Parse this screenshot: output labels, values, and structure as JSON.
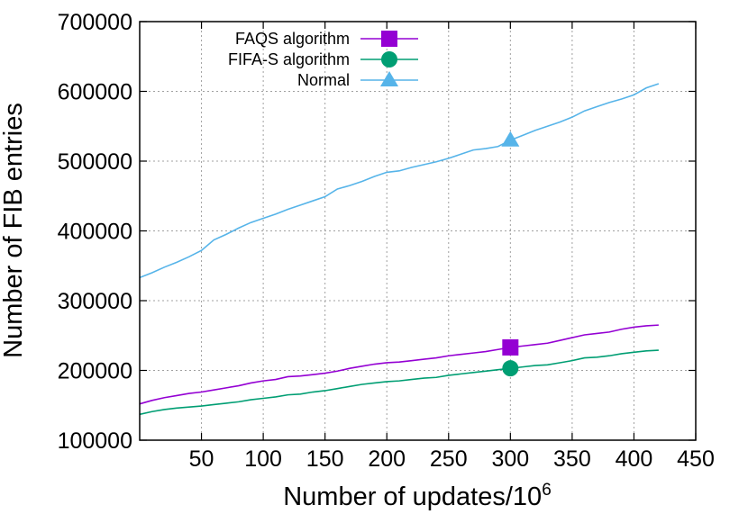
{
  "chart_data": {
    "type": "line",
    "xlabel": "Number of updates/10",
    "xlabel_superscript": "6",
    "ylabel": "Number of FIB entries",
    "xlim": [
      0,
      450
    ],
    "ylim": [
      100000,
      700000
    ],
    "x_ticks": [
      "50",
      "100",
      "150",
      "200",
      "250",
      "300",
      "350",
      "400",
      "450"
    ],
    "y_ticks": [
      "100000",
      "200000",
      "300000",
      "400000",
      "500000",
      "600000",
      "700000"
    ],
    "grid": true,
    "legend_position": "top-left",
    "series": [
      {
        "name": "FAQS algorithm",
        "color": "#9400d3",
        "marker": "square",
        "marker_at_x": 300,
        "points": [
          [
            0,
            152000
          ],
          [
            10,
            157000
          ],
          [
            20,
            161000
          ],
          [
            30,
            164000
          ],
          [
            40,
            167000
          ],
          [
            50,
            169000
          ],
          [
            60,
            172000
          ],
          [
            70,
            175000
          ],
          [
            80,
            178000
          ],
          [
            90,
            182000
          ],
          [
            100,
            185000
          ],
          [
            110,
            187000
          ],
          [
            120,
            191000
          ],
          [
            130,
            192000
          ],
          [
            140,
            194000
          ],
          [
            150,
            196000
          ],
          [
            160,
            199000
          ],
          [
            170,
            203000
          ],
          [
            180,
            206000
          ],
          [
            190,
            209000
          ],
          [
            200,
            211000
          ],
          [
            210,
            212000
          ],
          [
            220,
            214000
          ],
          [
            230,
            216000
          ],
          [
            240,
            218000
          ],
          [
            250,
            221000
          ],
          [
            260,
            223000
          ],
          [
            270,
            225000
          ],
          [
            280,
            227000
          ],
          [
            290,
            230000
          ],
          [
            300,
            233000
          ],
          [
            310,
            235000
          ],
          [
            320,
            237000
          ],
          [
            330,
            239000
          ],
          [
            340,
            243000
          ],
          [
            350,
            247000
          ],
          [
            360,
            251000
          ],
          [
            370,
            253000
          ],
          [
            380,
            255000
          ],
          [
            390,
            259000
          ],
          [
            400,
            262000
          ],
          [
            410,
            264000
          ],
          [
            420,
            265000
          ]
        ]
      },
      {
        "name": "FIFA-S algorithm",
        "color": "#009e73",
        "marker": "circle",
        "marker_at_x": 300,
        "points": [
          [
            0,
            137000
          ],
          [
            10,
            141000
          ],
          [
            20,
            144000
          ],
          [
            30,
            146000
          ],
          [
            40,
            147500
          ],
          [
            50,
            149000
          ],
          [
            60,
            151000
          ],
          [
            70,
            153000
          ],
          [
            80,
            155000
          ],
          [
            90,
            158000
          ],
          [
            100,
            160000
          ],
          [
            110,
            162000
          ],
          [
            120,
            165000
          ],
          [
            130,
            166000
          ],
          [
            140,
            169000
          ],
          [
            150,
            171000
          ],
          [
            160,
            174000
          ],
          [
            170,
            177000
          ],
          [
            180,
            180000
          ],
          [
            190,
            182000
          ],
          [
            200,
            184000
          ],
          [
            210,
            185000
          ],
          [
            220,
            187000
          ],
          [
            230,
            189000
          ],
          [
            240,
            190000
          ],
          [
            250,
            193000
          ],
          [
            260,
            195000
          ],
          [
            270,
            197000
          ],
          [
            280,
            199000
          ],
          [
            290,
            201000
          ],
          [
            300,
            203000
          ],
          [
            310,
            205000
          ],
          [
            320,
            207000
          ],
          [
            330,
            208000
          ],
          [
            340,
            211000
          ],
          [
            350,
            214000
          ],
          [
            360,
            218000
          ],
          [
            370,
            219000
          ],
          [
            380,
            221000
          ],
          [
            390,
            224000
          ],
          [
            400,
            226000
          ],
          [
            410,
            228000
          ],
          [
            420,
            229000
          ]
        ]
      },
      {
        "name": "Normal",
        "color": "#56b4e9",
        "marker": "triangle",
        "marker_at_x": 300,
        "points": [
          [
            0,
            333000
          ],
          [
            10,
            340000
          ],
          [
            20,
            348000
          ],
          [
            30,
            355000
          ],
          [
            40,
            363000
          ],
          [
            50,
            372000
          ],
          [
            60,
            387000
          ],
          [
            70,
            395000
          ],
          [
            80,
            404000
          ],
          [
            90,
            412000
          ],
          [
            100,
            418000
          ],
          [
            110,
            424000
          ],
          [
            120,
            431000
          ],
          [
            130,
            437000
          ],
          [
            140,
            443000
          ],
          [
            150,
            449000
          ],
          [
            160,
            460000
          ],
          [
            170,
            465000
          ],
          [
            180,
            471000
          ],
          [
            190,
            478000
          ],
          [
            200,
            484000
          ],
          [
            210,
            486000
          ],
          [
            220,
            491000
          ],
          [
            230,
            495000
          ],
          [
            240,
            499000
          ],
          [
            250,
            504000
          ],
          [
            260,
            510000
          ],
          [
            270,
            516000
          ],
          [
            280,
            518000
          ],
          [
            290,
            521000
          ],
          [
            300,
            530000
          ],
          [
            310,
            537000
          ],
          [
            320,
            544000
          ],
          [
            330,
            550000
          ],
          [
            340,
            556000
          ],
          [
            350,
            563000
          ],
          [
            360,
            572000
          ],
          [
            370,
            578000
          ],
          [
            380,
            584000
          ],
          [
            390,
            589000
          ],
          [
            400,
            595000
          ],
          [
            410,
            605000
          ],
          [
            420,
            611000
          ]
        ]
      }
    ]
  }
}
